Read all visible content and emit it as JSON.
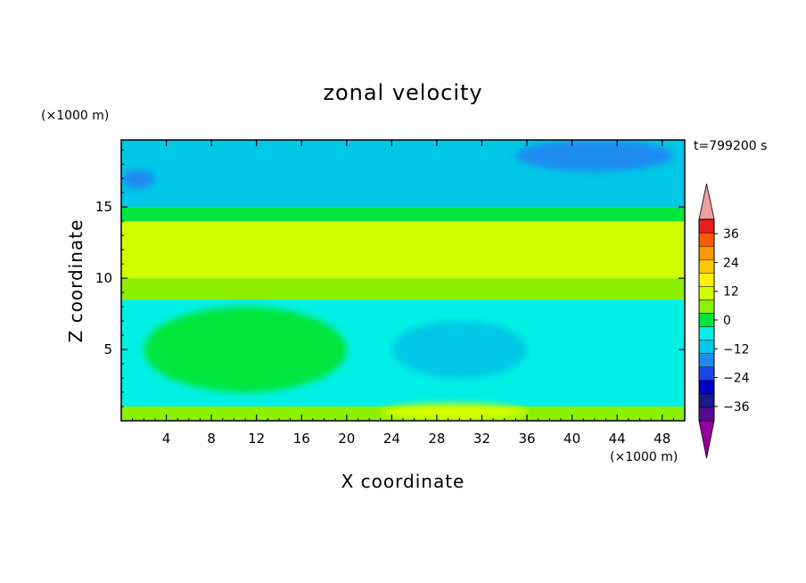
{
  "chart_data": {
    "type": "heatmap",
    "title": "zonal velocity",
    "xlabel": "X coordinate",
    "ylabel": "Z coordinate",
    "x_unit": "(×1000 m)",
    "y_unit": "(×1000 m)",
    "time_label": "t=799200 s",
    "xlim": [
      0,
      50
    ],
    "ylim": [
      0,
      19.7
    ],
    "x_ticks": [
      4,
      8,
      12,
      16,
      20,
      24,
      28,
      32,
      36,
      40,
      44,
      48
    ],
    "y_ticks": [
      5,
      10,
      15
    ],
    "colorbar": {
      "levels": [
        -42,
        -36,
        -30,
        -24,
        -18,
        -12,
        -6,
        0,
        6,
        12,
        18,
        24,
        30,
        36,
        42
      ],
      "labels": [
        36,
        24,
        12,
        0,
        -12,
        -24,
        -36
      ],
      "colors": [
        "#5a0a96",
        "#1a1a8c",
        "#0000c8",
        "#1e46e6",
        "#1e8cf0",
        "#00c8e6",
        "#00f0e6",
        "#00e63c",
        "#8cf000",
        "#d2ff00",
        "#fff000",
        "#ffc800",
        "#ff9600",
        "#ff5a00",
        "#e61e1e"
      ],
      "over_color": "#f0a0a0",
      "under_color": "#9600a0"
    },
    "bands": [
      {
        "z": [
          0,
          1.0
        ],
        "value": 6
      },
      {
        "z": [
          1.0,
          8.5
        ],
        "value": -6
      },
      {
        "z": [
          8.5,
          10.0
        ],
        "value": 6
      },
      {
        "z": [
          10.0,
          14.0
        ],
        "value": 12
      },
      {
        "z": [
          14.0,
          15.0
        ],
        "value": 3
      },
      {
        "z": [
          15.0,
          19.7
        ],
        "value": -12
      }
    ],
    "features": [
      {
        "x": [
          27,
          37
        ],
        "z": [
          12.5,
          13.6
        ],
        "value": 15,
        "label": "yellow jet core"
      },
      {
        "x": [
          23,
          36
        ],
        "z": [
          0,
          1.2
        ],
        "value": 12,
        "label": "near-surface yellow"
      },
      {
        "x": [
          35,
          49
        ],
        "z": [
          17.5,
          19.7
        ],
        "value": -18,
        "label": "upper blue patch"
      },
      {
        "x": [
          0,
          3
        ],
        "z": [
          16.3,
          17.6
        ],
        "value": -18,
        "label": "upper-left blue patch"
      },
      {
        "x": [
          24,
          36
        ],
        "z": [
          3,
          7
        ],
        "value": -12,
        "label": "cyan lower region"
      },
      {
        "x": [
          2,
          20
        ],
        "z": [
          2,
          8
        ],
        "value": 3,
        "label": "green lower region"
      }
    ]
  }
}
